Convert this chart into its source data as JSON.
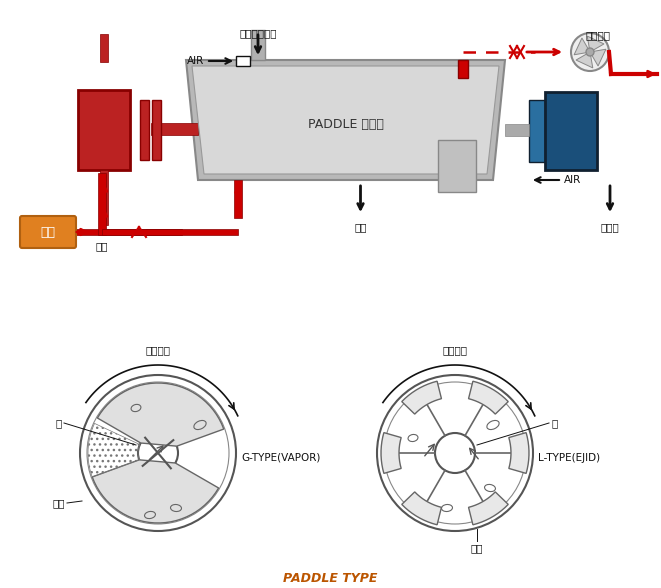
{
  "bg_color": "#ffffff",
  "dryer_label": "PADDLE 건조기",
  "red": "#cc0000",
  "blue": "#1a4f7a",
  "light_blue": "#2e6da0",
  "gray": "#aaaaaa",
  "light_gray": "#cccccc",
  "dark_gray": "#666666",
  "orange": "#e08020",
  "black": "#111111",
  "white": "#ffffff",
  "slurry_label": "슬러지투입구",
  "air_label_left": "AIR",
  "air_label_right": "AIR",
  "steam_label": "스팀",
  "condensate_label": "응쳕수",
  "powder_label": "분말",
  "steam_pipe_label": "증기",
  "vapor_exhaust_label": "증기배기",
  "rotation_label": "회전방향",
  "paddle_label": "패듸",
  "axis_label": "축",
  "g_type_label": "G-TYPE(VAPOR)",
  "l_type_label": "L-TYPE(EJID)",
  "paddle_type_label": "PADDLE TYPE"
}
